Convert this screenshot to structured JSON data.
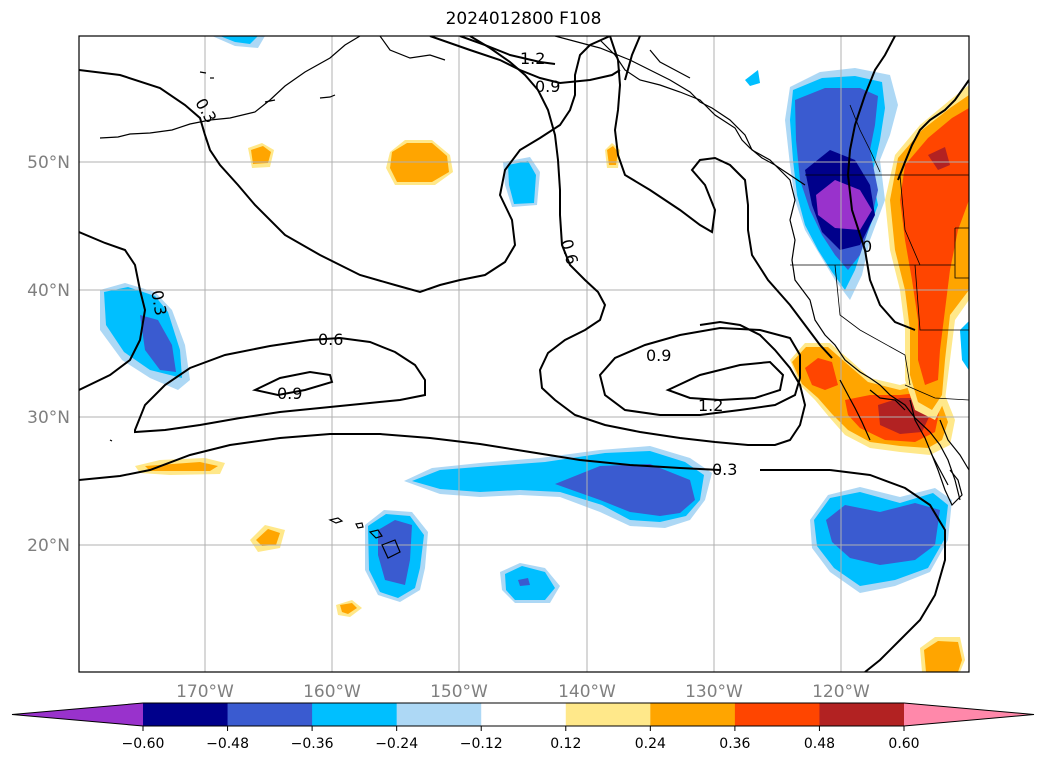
{
  "title": "2024012800 F108",
  "map": {
    "latitude_labels": [
      "50°N",
      "40°N",
      "30°N",
      "20°N"
    ],
    "longitude_labels": [
      "170°W",
      "160°W",
      "150°W",
      "140°W",
      "130°W",
      "120°W"
    ],
    "grid": true,
    "contour_labels": [
      "0.3",
      "0.6",
      "0.9",
      "1.2",
      "0.6",
      "0.9",
      "0.3",
      "0.9",
      "1.2",
      "0.3",
      "0.6",
      "0.9",
      "0.3",
      "0"
    ],
    "shading": {
      "extend": "both",
      "ticks": [
        "−0.60",
        "−0.48",
        "−0.36",
        "−0.24",
        "−0.12",
        "0.12",
        "0.24",
        "0.36",
        "0.48",
        "0.60"
      ],
      "colors": [
        "#9932cc",
        "#00008b",
        "#3a5bd0",
        "#00bfff",
        "#add8f5",
        "#ffffff",
        "#ffe88a",
        "#ffa500",
        "#ff4500",
        "#b22222",
        "#ff88aa"
      ]
    }
  }
}
